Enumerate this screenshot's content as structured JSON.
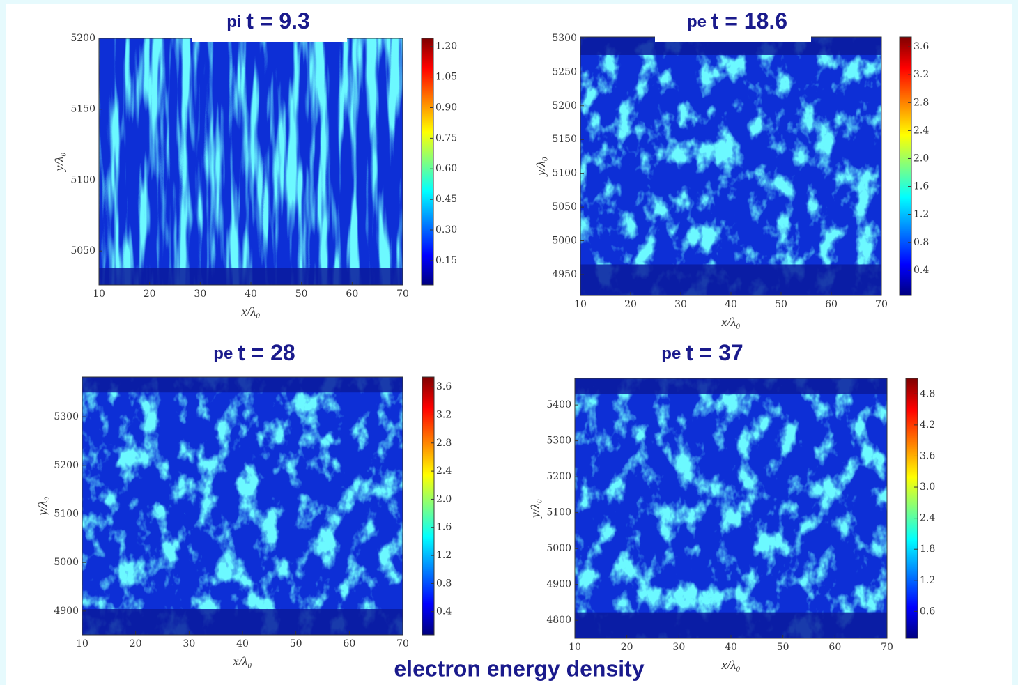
{
  "chart_data": [
    {
      "type": "heatmap",
      "title_prefix": "pi",
      "title": "t = 9.3",
      "xlabel": "x/λ₀",
      "ylabel": "y/λ₀",
      "xlim": [
        10,
        70
      ],
      "xticks": [
        10,
        20,
        30,
        40,
        50,
        60,
        70
      ],
      "ylim": [
        5026,
        5200
      ],
      "yticks": [
        5050,
        5100,
        5150,
        5200
      ],
      "colormap": "jet",
      "clim": [
        0.03,
        1.24
      ],
      "cticks": [
        0.15,
        {
          "value": 0.3,
          "label": "0.30"
        },
        0.45,
        {
          "value": 0.6,
          "label": "0.60"
        },
        0.75,
        {
          "value": 0.9,
          "label": "0.90"
        },
        1.05,
        {
          "value": 1.2,
          "label": "1.20"
        }
      ]
    },
    {
      "type": "heatmap",
      "title_prefix": "pe",
      "title": "t = 18.6",
      "xlabel": "x/λ₀",
      "ylabel": "y/λ₀",
      "xlim": [
        10,
        70
      ],
      "xticks": [
        10,
        20,
        30,
        40,
        50,
        60,
        70
      ],
      "ylim": [
        4919,
        5302
      ],
      "yticks": [
        4950,
        5000,
        5050,
        5100,
        5150,
        5200,
        5250,
        5300
      ],
      "colormap": "jet",
      "clim": [
        0.04,
        3.74
      ],
      "cticks": [
        0.4,
        0.8,
        1.2,
        1.6,
        {
          "value": 2,
          "label": "2.0"
        },
        2.4,
        2.8,
        3.2,
        3.6
      ]
    },
    {
      "type": "heatmap",
      "title_prefix": "pe",
      "title": "t = 28",
      "xlabel": "x/λ₀",
      "ylabel": "y/λ₀",
      "xlim": [
        10,
        70
      ],
      "xticks": [
        10,
        20,
        30,
        40,
        50,
        60,
        70
      ],
      "ylim": [
        4851,
        5382
      ],
      "yticks": [
        4900,
        5000,
        5100,
        5200,
        5300
      ],
      "colormap": "jet",
      "clim": [
        0.07,
        3.74
      ],
      "cticks": [
        0.4,
        0.8,
        1.2,
        1.6,
        {
          "value": 2,
          "label": "2.0"
        },
        2.4,
        2.8,
        3.2,
        3.6
      ]
    },
    {
      "type": "heatmap",
      "title_prefix": "pe",
      "title": "t = 37",
      "xlabel": "x/λ₀",
      "ylabel": "y/λ₀",
      "xlim": [
        10,
        70
      ],
      "xticks": [
        10,
        20,
        30,
        40,
        50,
        60,
        70
      ],
      "ylim": [
        4750,
        5474
      ],
      "yticks": [
        4800,
        4900,
        5000,
        5100,
        5200,
        5300,
        5400
      ],
      "colormap": "jet",
      "clim": [
        0.08,
        5.1
      ],
      "cticks": [
        0.6,
        1.2,
        1.8,
        2.4,
        {
          "value": 3,
          "label": "3.0"
        },
        3.6,
        4.2,
        4.8
      ]
    }
  ],
  "caption": "electron energy density"
}
